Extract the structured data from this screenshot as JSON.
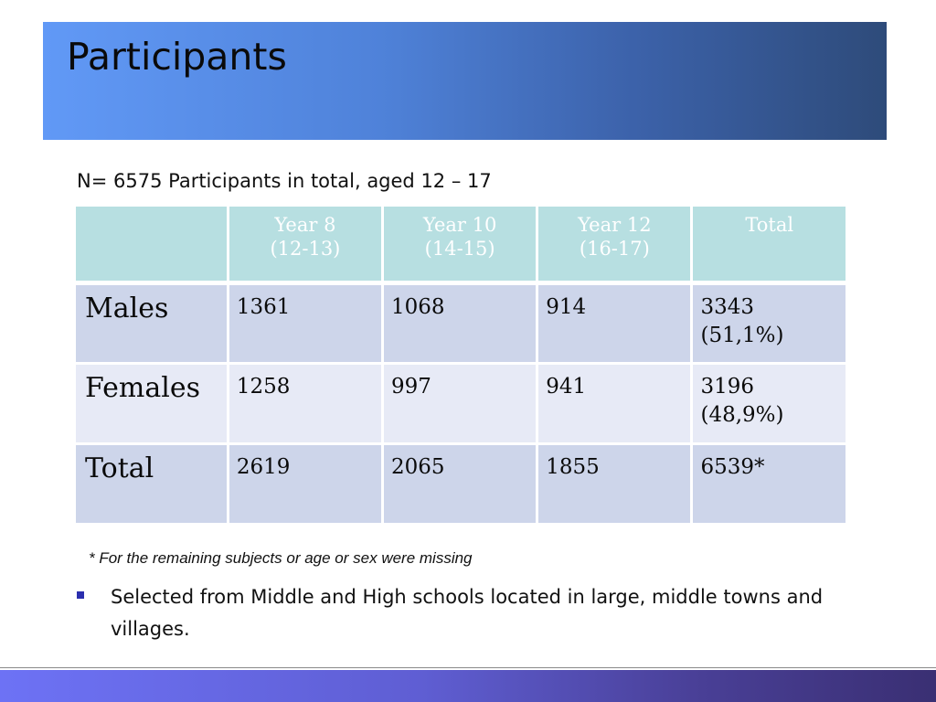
{
  "slide": {
    "title": "Participants",
    "subtitle": "N= 6575 Participants in total, aged 12 – 17"
  },
  "table": {
    "headers": [
      {
        "line1": "",
        "line2": ""
      },
      {
        "line1": "Year  8",
        "line2": "(12-13)"
      },
      {
        "line1": "Year  10",
        "line2": "(14-15)"
      },
      {
        "line1": "Year  12",
        "line2": "(16-17)"
      },
      {
        "line1": "Total",
        "line2": ""
      }
    ],
    "rows": [
      {
        "label": "Males",
        "cells": [
          "1361",
          "1068",
          "914",
          "3343 (51,1%)"
        ]
      },
      {
        "label": "Females",
        "cells": [
          "1258",
          "997",
          "941",
          "3196 (48,9%)"
        ]
      },
      {
        "label": "Total",
        "cells": [
          "2619",
          "2065",
          "1855",
          "6539*"
        ]
      }
    ]
  },
  "footnote": "* For the remaining subjects or age or sex were missing",
  "bullets": [
    "Selected from Middle and High schools  located in large, middle towns and villages."
  ],
  "colors": {
    "title_band_start": "#6199f6",
    "title_band_end": "#2e4b7a",
    "header_fill": "#b7dfe1",
    "row_dark": "#cdd5ea",
    "row_light": "#e7eaf6",
    "footer_band": "#5f5ed3"
  }
}
